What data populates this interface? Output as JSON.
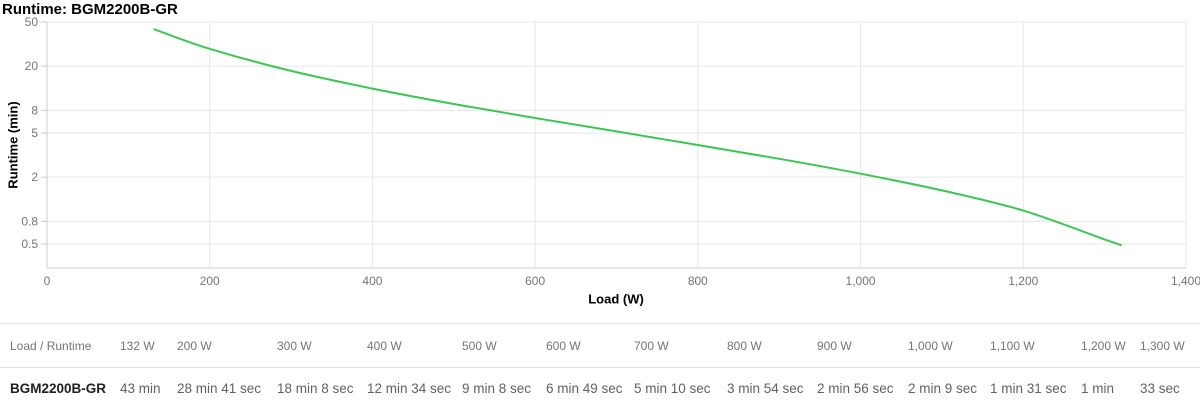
{
  "chart": {
    "title": "Runtime: BGM2200B-GR",
    "x_axis_title": "Load (W)",
    "y_axis_title": "Runtime (min)",
    "x_tick_values": [
      0,
      200,
      400,
      600,
      800,
      1000,
      1200,
      1400
    ],
    "x_tick_labels": [
      "0",
      "200",
      "400",
      "600",
      "800",
      "1,000",
      "1,200",
      "1,400"
    ],
    "y_tick_values": [
      50,
      20,
      8,
      5,
      2,
      0.8,
      0.5
    ],
    "y_tick_labels": [
      "50",
      "20",
      "8",
      "5",
      "2",
      "0.8",
      "0.5"
    ],
    "colors": {
      "line": "#3dc752",
      "grid": "#e6e6e6",
      "axis": "#cccccc",
      "tick_label": "#757575",
      "title": "#000000"
    }
  },
  "chart_data": {
    "type": "line",
    "title": "Runtime: BGM2200B-GR",
    "xlabel": "Load (W)",
    "ylabel": "Runtime (min)",
    "xlim": [
      0,
      1400
    ],
    "y_scale": "log",
    "y_ticks": [
      50,
      20,
      8,
      5,
      2,
      0.8,
      0.5
    ],
    "x_ticks": [
      0,
      200,
      400,
      600,
      800,
      1000,
      1200,
      1400
    ],
    "grid": true,
    "legend": false,
    "series": [
      {
        "name": "BGM2200B-GR",
        "color": "#3dc752",
        "x": [
          132,
          200,
          300,
          400,
          500,
          600,
          700,
          800,
          900,
          1000,
          1100,
          1200,
          1300,
          1320
        ],
        "y": [
          43,
          28.68,
          18.13,
          12.57,
          9.13,
          6.82,
          5.17,
          3.9,
          2.93,
          2.15,
          1.52,
          1.0,
          0.55,
          0.49
        ]
      }
    ]
  },
  "table": {
    "corner_header": "Load / Runtime",
    "load_headers": [
      "132 W",
      "200 W",
      "300 W",
      "400 W",
      "500 W",
      "600 W",
      "700 W",
      "800 W",
      "900 W",
      "1,000 W",
      "1,100 W",
      "1,200 W",
      "1,300 W"
    ],
    "rows": [
      {
        "label": "BGM2200B-GR",
        "values": [
          "43 min",
          "28 min 41 sec",
          "18 min 8 sec",
          "12 min 34 sec",
          "9 min 8 sec",
          "6 min 49 sec",
          "5 min 10 sec",
          "3 min 54 sec",
          "2 min 56 sec",
          "2 min 9 sec",
          "1 min 31 sec",
          "1 min",
          "33 sec"
        ]
      }
    ]
  }
}
